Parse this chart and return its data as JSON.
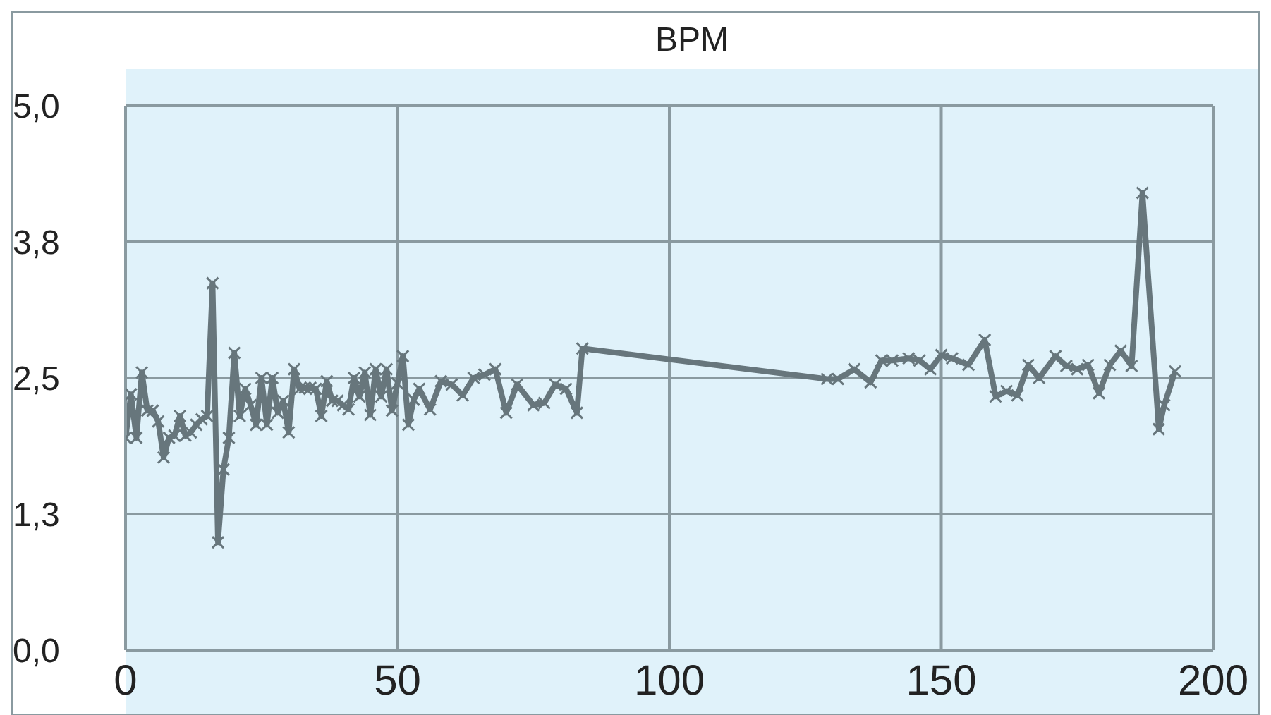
{
  "chart_data": {
    "type": "line",
    "title": "BPM",
    "xlim": [
      0,
      200
    ],
    "xticks": [
      0,
      50,
      100,
      150,
      200
    ],
    "ylim": [
      0,
      5
    ],
    "yticks": [
      {
        "value": 0,
        "label": "0,0"
      },
      {
        "value": 1.25,
        "label": "1,3"
      },
      {
        "value": 2.5,
        "label": "2,5"
      },
      {
        "value": 3.75,
        "label": "3,8"
      },
      {
        "value": 5,
        "label": "5,0"
      }
    ],
    "grid": true,
    "marker": "cross",
    "line_style": "solid",
    "series": [
      {
        "color": "#67767c",
        "x": [
          0,
          1,
          2,
          3,
          4,
          5,
          6,
          7,
          8,
          9,
          10,
          11,
          12,
          13,
          14,
          15,
          16,
          17,
          18,
          19,
          20,
          21,
          22,
          23,
          24,
          25,
          26,
          27,
          28,
          29,
          30,
          31,
          32,
          33,
          34,
          35,
          36,
          37,
          38,
          39,
          40,
          41,
          42,
          43,
          44,
          45,
          46,
          47,
          48,
          49,
          50,
          51,
          52,
          53,
          54,
          56,
          58,
          60,
          62,
          64,
          66,
          68,
          70,
          72,
          75,
          77,
          79,
          81,
          83,
          84,
          129,
          131,
          134,
          137,
          139,
          141,
          144,
          146,
          148,
          150,
          152,
          155,
          158,
          160,
          162,
          164,
          166,
          168,
          171,
          173,
          175,
          177,
          179,
          181,
          183,
          185,
          187,
          190,
          191,
          193
        ],
        "values": [
          1.95,
          2.35,
          1.95,
          2.55,
          2.2,
          2.2,
          2.1,
          1.77,
          1.95,
          1.97,
          2.15,
          1.97,
          2.0,
          2.07,
          2.12,
          2.15,
          3.37,
          0.99,
          1.66,
          1.95,
          2.73,
          2.15,
          2.4,
          2.25,
          2.07,
          2.5,
          2.07,
          2.5,
          2.18,
          2.29,
          2.0,
          2.58,
          2.4,
          2.41,
          2.41,
          2.4,
          2.15,
          2.47,
          2.29,
          2.29,
          2.25,
          2.21,
          2.5,
          2.33,
          2.55,
          2.16,
          2.58,
          2.33,
          2.58,
          2.2,
          2.45,
          2.7,
          2.07,
          2.3,
          2.4,
          2.21,
          2.47,
          2.44,
          2.34,
          2.5,
          2.53,
          2.58,
          2.18,
          2.44,
          2.25,
          2.27,
          2.44,
          2.4,
          2.18,
          2.77,
          2.49,
          2.49,
          2.58,
          2.46,
          2.66,
          2.66,
          2.68,
          2.66,
          2.58,
          2.71,
          2.68,
          2.62,
          2.85,
          2.33,
          2.38,
          2.34,
          2.62,
          2.5,
          2.7,
          2.61,
          2.58,
          2.62,
          2.36,
          2.62,
          2.75,
          2.61,
          4.2,
          2.03,
          2.25,
          2.56
        ]
      }
    ]
  }
}
